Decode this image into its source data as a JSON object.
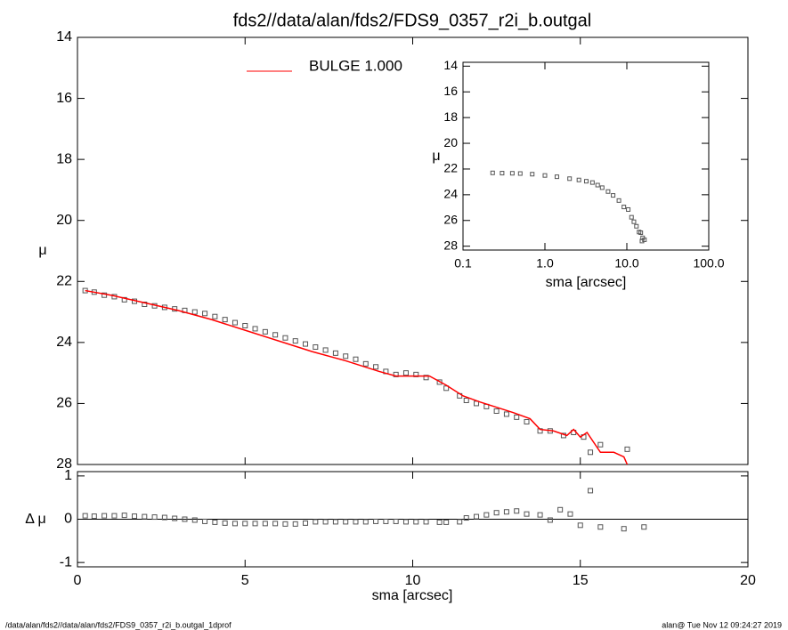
{
  "chart_data": [
    {
      "type": "line",
      "title": "fds2//data/alan/fds2/FDS9_0357_r2i_b.outgal",
      "ylabel": "μ",
      "xlim": [
        0,
        20
      ],
      "xticks": [
        0,
        5,
        10,
        15,
        20
      ],
      "ylim": [
        28,
        14
      ],
      "yticks": [
        14,
        16,
        18,
        20,
        22,
        24,
        26,
        28
      ],
      "legend": "top-left",
      "series": [
        {
          "name": null,
          "style": "markers",
          "color": "#555555",
          "x": [
            0.23,
            0.5,
            0.8,
            1.1,
            1.4,
            1.7,
            2.0,
            2.3,
            2.6,
            2.9,
            3.2,
            3.5,
            3.8,
            4.1,
            4.4,
            4.7,
            5.0,
            5.3,
            5.6,
            5.9,
            6.2,
            6.5,
            6.8,
            7.1,
            7.4,
            7.7,
            8.0,
            8.3,
            8.6,
            8.9,
            9.2,
            9.5,
            9.8,
            10.1,
            10.4,
            10.8,
            11.0,
            11.4,
            11.6,
            11.9,
            12.2,
            12.5,
            12.8,
            13.1,
            13.4,
            13.8,
            14.1,
            14.5,
            14.8,
            15.1,
            15.3,
            15.6,
            16.4
          ],
          "values": [
            22.3,
            22.35,
            22.45,
            22.5,
            22.6,
            22.65,
            22.75,
            22.8,
            22.85,
            22.9,
            22.95,
            23.0,
            23.05,
            23.15,
            23.25,
            23.35,
            23.45,
            23.55,
            23.65,
            23.75,
            23.85,
            23.95,
            24.05,
            24.15,
            24.25,
            24.35,
            24.45,
            24.55,
            24.7,
            24.8,
            24.95,
            25.05,
            25.0,
            25.05,
            25.15,
            25.3,
            25.5,
            25.75,
            25.9,
            26.0,
            26.1,
            26.25,
            26.35,
            26.45,
            26.6,
            26.9,
            26.9,
            27.05,
            26.95,
            27.1,
            27.6,
            27.35,
            27.5
          ]
        },
        {
          "name": "BULGE  1.000",
          "style": "line",
          "color": "#ff0000",
          "x": [
            0.23,
            1,
            2,
            3,
            4,
            5,
            6,
            7,
            8,
            9,
            9.5,
            10,
            10.5,
            11,
            11.5,
            12,
            13,
            13.5,
            13.8,
            14.2,
            14.6,
            14.8,
            15.0,
            15.2,
            15.6,
            16.0,
            16.3,
            16.4
          ],
          "values": [
            22.3,
            22.45,
            22.7,
            22.95,
            23.25,
            23.6,
            23.95,
            24.3,
            24.6,
            24.95,
            25.1,
            25.1,
            25.1,
            25.4,
            25.75,
            25.95,
            26.3,
            26.5,
            26.85,
            26.9,
            27.05,
            26.85,
            27.1,
            26.95,
            27.6,
            27.6,
            27.75,
            28.0
          ]
        }
      ]
    },
    {
      "type": "scatter",
      "xlabel": "sma [arcsec]",
      "ylabel": "Δ μ",
      "xlim": [
        0,
        20
      ],
      "xticks": [
        0,
        5,
        10,
        15,
        20
      ],
      "ylim": [
        -1.1,
        1.1
      ],
      "yticks": [
        -1,
        0,
        1
      ],
      "reference_line": 0,
      "series": [
        {
          "name": null,
          "color": "#555555",
          "x": [
            0.23,
            0.5,
            0.8,
            1.1,
            1.4,
            1.7,
            2.0,
            2.3,
            2.6,
            2.9,
            3.2,
            3.5,
            3.8,
            4.1,
            4.4,
            4.7,
            5.0,
            5.3,
            5.6,
            5.9,
            6.2,
            6.5,
            6.8,
            7.1,
            7.4,
            7.7,
            8.0,
            8.3,
            8.6,
            8.9,
            9.2,
            9.5,
            9.8,
            10.1,
            10.4,
            10.8,
            11.0,
            11.4,
            11.6,
            11.9,
            12.2,
            12.5,
            12.8,
            13.1,
            13.4,
            13.8,
            14.1,
            14.4,
            14.7,
            15.0,
            15.3,
            15.6,
            16.3,
            16.9
          ],
          "values": [
            0.08,
            0.07,
            0.08,
            0.08,
            0.09,
            0.07,
            0.06,
            0.05,
            0.04,
            0.02,
            0.0,
            -0.02,
            -0.05,
            -0.07,
            -0.09,
            -0.1,
            -0.1,
            -0.1,
            -0.1,
            -0.1,
            -0.11,
            -0.11,
            -0.09,
            -0.06,
            -0.06,
            -0.06,
            -0.06,
            -0.06,
            -0.06,
            -0.05,
            -0.05,
            -0.05,
            -0.06,
            -0.06,
            -0.06,
            -0.07,
            -0.07,
            -0.06,
            0.03,
            0.06,
            0.1,
            0.15,
            0.17,
            0.19,
            0.12,
            0.1,
            -0.02,
            0.22,
            0.12,
            -0.14,
            0.66,
            -0.18,
            -0.22,
            -0.18
          ]
        }
      ]
    },
    {
      "type": "scatter",
      "xlabel": "sma [arcsec]",
      "ylabel": "μ",
      "log_x": true,
      "xlim": [
        0.1,
        100
      ],
      "xticks": [
        0.1,
        {
          "value": 1,
          "label": "1.0"
        },
        {
          "value": 10,
          "label": "10.0"
        },
        {
          "value": 100,
          "label": "100.0"
        }
      ],
      "ylim": [
        28.3,
        13.7
      ],
      "yticks": [
        14,
        16,
        18,
        20,
        22,
        24,
        26,
        28
      ],
      "series": [
        {
          "name": null,
          "color": "#555555",
          "x": [
            0.23,
            0.3,
            0.4,
            0.5,
            0.7,
            1.0,
            1.4,
            2.0,
            2.6,
            3.2,
            3.8,
            4.4,
            5.0,
            5.9,
            6.8,
            8.0,
            9.2,
            10.4,
            11.4,
            12.2,
            13.1,
            14.1,
            14.8,
            15.3,
            15.6,
            16.4
          ],
          "values": [
            22.3,
            22.32,
            22.33,
            22.35,
            22.4,
            22.5,
            22.6,
            22.75,
            22.85,
            22.95,
            23.05,
            23.25,
            23.45,
            23.75,
            24.05,
            24.45,
            24.95,
            25.15,
            25.75,
            26.1,
            26.45,
            26.9,
            26.95,
            27.6,
            27.35,
            27.5
          ]
        }
      ]
    }
  ],
  "footer": {
    "left": "/data/alan/fds2//data/alan/fds2/FDS9_0357_r2i_b.outgal_1dprof",
    "right": "alan@  Tue Nov 12 09:24:27 2019"
  }
}
